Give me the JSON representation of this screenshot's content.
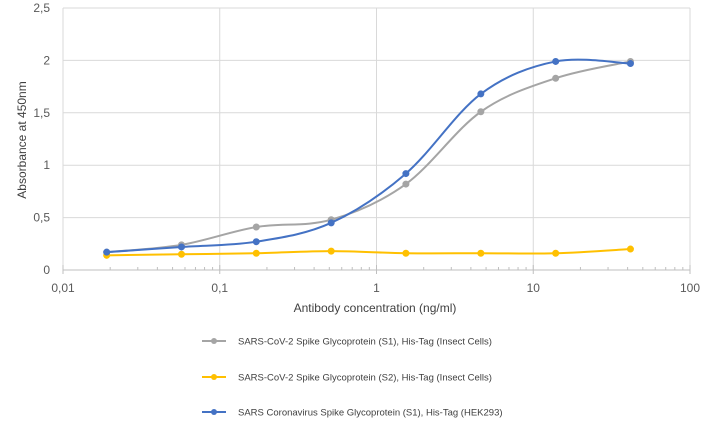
{
  "chart_data": {
    "type": "line",
    "title": "",
    "xlabel": "Antibody concentration (ng/ml)",
    "ylabel": "Absorbance at 450nm",
    "xscale": "log",
    "xlim": [
      0.01,
      100
    ],
    "ylim": [
      0,
      2.5
    ],
    "xticks": [
      0.01,
      0.1,
      1,
      10,
      100
    ],
    "xtick_labels": [
      "0,01",
      "0,1",
      "1",
      "10",
      "100"
    ],
    "yticks": [
      0,
      0.5,
      1,
      1.5,
      2,
      2.5
    ],
    "ytick_labels": [
      "0",
      "0,5",
      "1",
      "1,5",
      "2",
      "2,5"
    ],
    "grid": true,
    "legend_position": "bottom",
    "series": [
      {
        "name": "SARS-CoV-2 Spike Glycoprotein (S1), His-Tag (Insect Cells)",
        "color": "#a5a5a5",
        "x": [
          0.019,
          0.057,
          0.171,
          0.514,
          1.54,
          4.63,
          13.9,
          41.7
        ],
        "y": [
          0.17,
          0.24,
          0.41,
          0.48,
          0.82,
          1.51,
          1.83,
          1.99
        ]
      },
      {
        "name": "SARS-CoV-2 Spike Glycoprotein (S2), His-Tag (Insect Cells)",
        "color": "#ffc000",
        "x": [
          0.019,
          0.057,
          0.171,
          0.514,
          1.54,
          4.63,
          13.9,
          41.7
        ],
        "y": [
          0.14,
          0.15,
          0.16,
          0.18,
          0.16,
          0.16,
          0.16,
          0.2
        ]
      },
      {
        "name": "SARS Coronavirus Spike Glycoprotein (S1), His-Tag (HEK293)",
        "color": "#4472c4",
        "x": [
          0.019,
          0.057,
          0.171,
          0.514,
          1.54,
          4.63,
          13.9,
          41.7
        ],
        "y": [
          0.17,
          0.22,
          0.27,
          0.45,
          0.92,
          1.68,
          1.99,
          1.97
        ]
      }
    ]
  }
}
